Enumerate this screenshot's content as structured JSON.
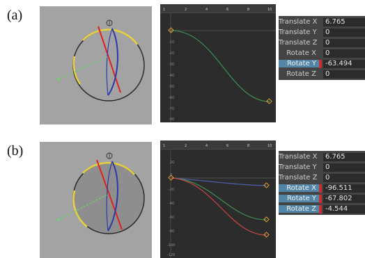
{
  "panels": [
    {
      "label": "(a)",
      "channels": [
        {
          "name": "Translate X",
          "value": "6.765",
          "keyed": false
        },
        {
          "name": "Translate Y",
          "value": "0",
          "keyed": false
        },
        {
          "name": "Translate Z",
          "value": "0",
          "keyed": false
        },
        {
          "name": "Rotate X",
          "value": "0",
          "keyed": false
        },
        {
          "name": "Rotate Y",
          "value": "-63.494",
          "keyed": true
        },
        {
          "name": "Rotate Z",
          "value": "0",
          "keyed": false
        }
      ],
      "graph": {
        "ruler_ticks": [
          "1",
          "2",
          "4",
          "6",
          "8",
          "10"
        ],
        "y_ticks": [
          "0",
          "-10",
          "-20",
          "-30",
          "-40",
          "-50",
          "-60",
          "-70",
          "-80"
        ]
      }
    },
    {
      "label": "(b)",
      "channels": [
        {
          "name": "Translate X",
          "value": "6.765",
          "keyed": false
        },
        {
          "name": "Translate Y",
          "value": "0",
          "keyed": false
        },
        {
          "name": "Translate Z",
          "value": "0",
          "keyed": false
        },
        {
          "name": "Rotate X",
          "value": "-96.511",
          "keyed": true
        },
        {
          "name": "Rotate Y",
          "value": "-67.802",
          "keyed": true
        },
        {
          "name": "Rotate Z",
          "value": "-4.544",
          "keyed": true
        }
      ],
      "graph": {
        "ruler_ticks": [
          "1",
          "2",
          "4",
          "6",
          "8",
          "10"
        ],
        "y_ticks": [
          "20",
          "0",
          "-20",
          "-40",
          "-60",
          "-80",
          "-100",
          "-120"
        ]
      }
    }
  ],
  "colors": {
    "viewport_bg": "#a3a3a3",
    "graph_bg": "#2c2c2c",
    "channel_box_bg": "#444444",
    "channel_highlight": "#5285a6",
    "key_marker": "#cc2c2c",
    "curve_x": "#c84646",
    "curve_y": "#3f8f55",
    "curve_z": "#4a5fa8",
    "keyframe": "#e0a030",
    "rotate_ring_yellow": "#e6d23c",
    "rotate_ring_red": "#e02020",
    "rotate_ring_blue": "#2a3aa8",
    "translate_axis": "#6fd06f"
  }
}
